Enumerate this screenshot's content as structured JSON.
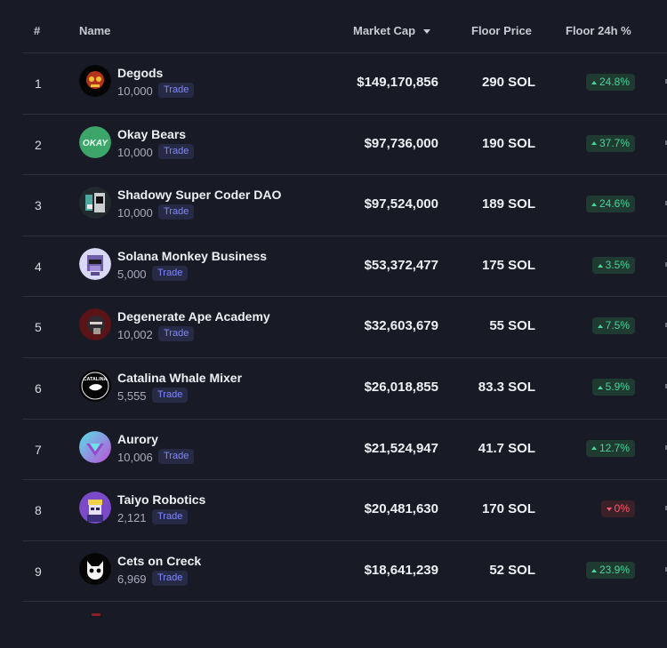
{
  "table": {
    "headers": {
      "rank": "#",
      "name": "Name",
      "market_cap": "Market Cap",
      "floor_price": "Floor Price",
      "floor_change": "Floor 24h %"
    },
    "trade_label": "Trade",
    "rows": [
      {
        "rank": "1",
        "name": "Degods",
        "supply": "10,000",
        "market_cap": "$149,170,856",
        "floor": "290 SOL",
        "change": "24.8%",
        "direction": "up",
        "avatar": "degods-avatar-icon"
      },
      {
        "rank": "2",
        "name": "Okay Bears",
        "supply": "10,000",
        "market_cap": "$97,736,000",
        "floor": "190 SOL",
        "change": "37.7%",
        "direction": "up",
        "avatar": "okay-bears-avatar-icon",
        "avatar_text": "OKAY"
      },
      {
        "rank": "3",
        "name": "Shadowy Super Coder DAO",
        "supply": "10,000",
        "market_cap": "$97,524,000",
        "floor": "189 SOL",
        "change": "24.6%",
        "direction": "up",
        "avatar": "shadowy-super-coder-avatar-icon"
      },
      {
        "rank": "4",
        "name": "Solana Monkey Business",
        "supply": "5,000",
        "market_cap": "$53,372,477",
        "floor": "175 SOL",
        "change": "3.5%",
        "direction": "up",
        "avatar": "solana-monkey-avatar-icon"
      },
      {
        "rank": "5",
        "name": "Degenerate Ape Academy",
        "supply": "10,002",
        "market_cap": "$32,603,679",
        "floor": "55 SOL",
        "change": "7.5%",
        "direction": "up",
        "avatar": "degenerate-ape-avatar-icon"
      },
      {
        "rank": "6",
        "name": "Catalina Whale Mixer",
        "supply": "5,555",
        "market_cap": "$26,018,855",
        "floor": "83.3 SOL",
        "change": "5.9%",
        "direction": "up",
        "avatar": "catalina-whale-avatar-icon",
        "avatar_text": "CATALINA"
      },
      {
        "rank": "7",
        "name": "Aurory",
        "supply": "10,006",
        "market_cap": "$21,524,947",
        "floor": "41.7 SOL",
        "change": "12.7%",
        "direction": "up",
        "avatar": "aurory-avatar-icon"
      },
      {
        "rank": "8",
        "name": "Taiyo Robotics",
        "supply": "2,121",
        "market_cap": "$20,481,630",
        "floor": "170 SOL",
        "change": "0%",
        "direction": "down",
        "avatar": "taiyo-robotics-avatar-icon"
      },
      {
        "rank": "9",
        "name": "Cets on Creck",
        "supply": "6,969",
        "market_cap": "$18,641,239",
        "floor": "52 SOL",
        "change": "23.9%",
        "direction": "up",
        "avatar": "cets-on-creck-avatar-icon"
      }
    ]
  },
  "colors": {
    "background": "#181a25",
    "positive": "#48d59a",
    "negative": "#ff5b6f",
    "trade_accent": "#7f86ff"
  }
}
